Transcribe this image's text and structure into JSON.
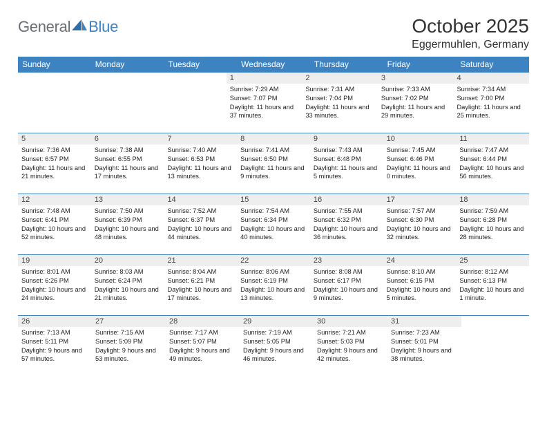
{
  "logo": {
    "text_a": "General",
    "text_b": "Blue",
    "color_a": "#6a6f76",
    "color_b": "#3d83c2"
  },
  "header": {
    "month_title": "October 2025",
    "location": "Eggermuhlen, Germany"
  },
  "colors": {
    "header_bg": "#3d83c2",
    "header_fg": "#ffffff",
    "daynum_bg": "#eeeeee",
    "week_border": "#3d83c2",
    "text": "#222222"
  },
  "days_of_week": [
    "Sunday",
    "Monday",
    "Tuesday",
    "Wednesday",
    "Thursday",
    "Friday",
    "Saturday"
  ],
  "weeks": [
    [
      null,
      null,
      null,
      {
        "n": "1",
        "sr": "7:29 AM",
        "ss": "7:07 PM",
        "dl": "11 hours and 37 minutes."
      },
      {
        "n": "2",
        "sr": "7:31 AM",
        "ss": "7:04 PM",
        "dl": "11 hours and 33 minutes."
      },
      {
        "n": "3",
        "sr": "7:33 AM",
        "ss": "7:02 PM",
        "dl": "11 hours and 29 minutes."
      },
      {
        "n": "4",
        "sr": "7:34 AM",
        "ss": "7:00 PM",
        "dl": "11 hours and 25 minutes."
      }
    ],
    [
      {
        "n": "5",
        "sr": "7:36 AM",
        "ss": "6:57 PM",
        "dl": "11 hours and 21 minutes."
      },
      {
        "n": "6",
        "sr": "7:38 AM",
        "ss": "6:55 PM",
        "dl": "11 hours and 17 minutes."
      },
      {
        "n": "7",
        "sr": "7:40 AM",
        "ss": "6:53 PM",
        "dl": "11 hours and 13 minutes."
      },
      {
        "n": "8",
        "sr": "7:41 AM",
        "ss": "6:50 PM",
        "dl": "11 hours and 9 minutes."
      },
      {
        "n": "9",
        "sr": "7:43 AM",
        "ss": "6:48 PM",
        "dl": "11 hours and 5 minutes."
      },
      {
        "n": "10",
        "sr": "7:45 AM",
        "ss": "6:46 PM",
        "dl": "11 hours and 0 minutes."
      },
      {
        "n": "11",
        "sr": "7:47 AM",
        "ss": "6:44 PM",
        "dl": "10 hours and 56 minutes."
      }
    ],
    [
      {
        "n": "12",
        "sr": "7:48 AM",
        "ss": "6:41 PM",
        "dl": "10 hours and 52 minutes."
      },
      {
        "n": "13",
        "sr": "7:50 AM",
        "ss": "6:39 PM",
        "dl": "10 hours and 48 minutes."
      },
      {
        "n": "14",
        "sr": "7:52 AM",
        "ss": "6:37 PM",
        "dl": "10 hours and 44 minutes."
      },
      {
        "n": "15",
        "sr": "7:54 AM",
        "ss": "6:34 PM",
        "dl": "10 hours and 40 minutes."
      },
      {
        "n": "16",
        "sr": "7:55 AM",
        "ss": "6:32 PM",
        "dl": "10 hours and 36 minutes."
      },
      {
        "n": "17",
        "sr": "7:57 AM",
        "ss": "6:30 PM",
        "dl": "10 hours and 32 minutes."
      },
      {
        "n": "18",
        "sr": "7:59 AM",
        "ss": "6:28 PM",
        "dl": "10 hours and 28 minutes."
      }
    ],
    [
      {
        "n": "19",
        "sr": "8:01 AM",
        "ss": "6:26 PM",
        "dl": "10 hours and 24 minutes."
      },
      {
        "n": "20",
        "sr": "8:03 AM",
        "ss": "6:24 PM",
        "dl": "10 hours and 21 minutes."
      },
      {
        "n": "21",
        "sr": "8:04 AM",
        "ss": "6:21 PM",
        "dl": "10 hours and 17 minutes."
      },
      {
        "n": "22",
        "sr": "8:06 AM",
        "ss": "6:19 PM",
        "dl": "10 hours and 13 minutes."
      },
      {
        "n": "23",
        "sr": "8:08 AM",
        "ss": "6:17 PM",
        "dl": "10 hours and 9 minutes."
      },
      {
        "n": "24",
        "sr": "8:10 AM",
        "ss": "6:15 PM",
        "dl": "10 hours and 5 minutes."
      },
      {
        "n": "25",
        "sr": "8:12 AM",
        "ss": "6:13 PM",
        "dl": "10 hours and 1 minute."
      }
    ],
    [
      {
        "n": "26",
        "sr": "7:13 AM",
        "ss": "5:11 PM",
        "dl": "9 hours and 57 minutes."
      },
      {
        "n": "27",
        "sr": "7:15 AM",
        "ss": "5:09 PM",
        "dl": "9 hours and 53 minutes."
      },
      {
        "n": "28",
        "sr": "7:17 AM",
        "ss": "5:07 PM",
        "dl": "9 hours and 49 minutes."
      },
      {
        "n": "29",
        "sr": "7:19 AM",
        "ss": "5:05 PM",
        "dl": "9 hours and 46 minutes."
      },
      {
        "n": "30",
        "sr": "7:21 AM",
        "ss": "5:03 PM",
        "dl": "9 hours and 42 minutes."
      },
      {
        "n": "31",
        "sr": "7:23 AM",
        "ss": "5:01 PM",
        "dl": "9 hours and 38 minutes."
      },
      null
    ]
  ],
  "labels": {
    "sunrise": "Sunrise:",
    "sunset": "Sunset:",
    "daylight": "Daylight:"
  }
}
